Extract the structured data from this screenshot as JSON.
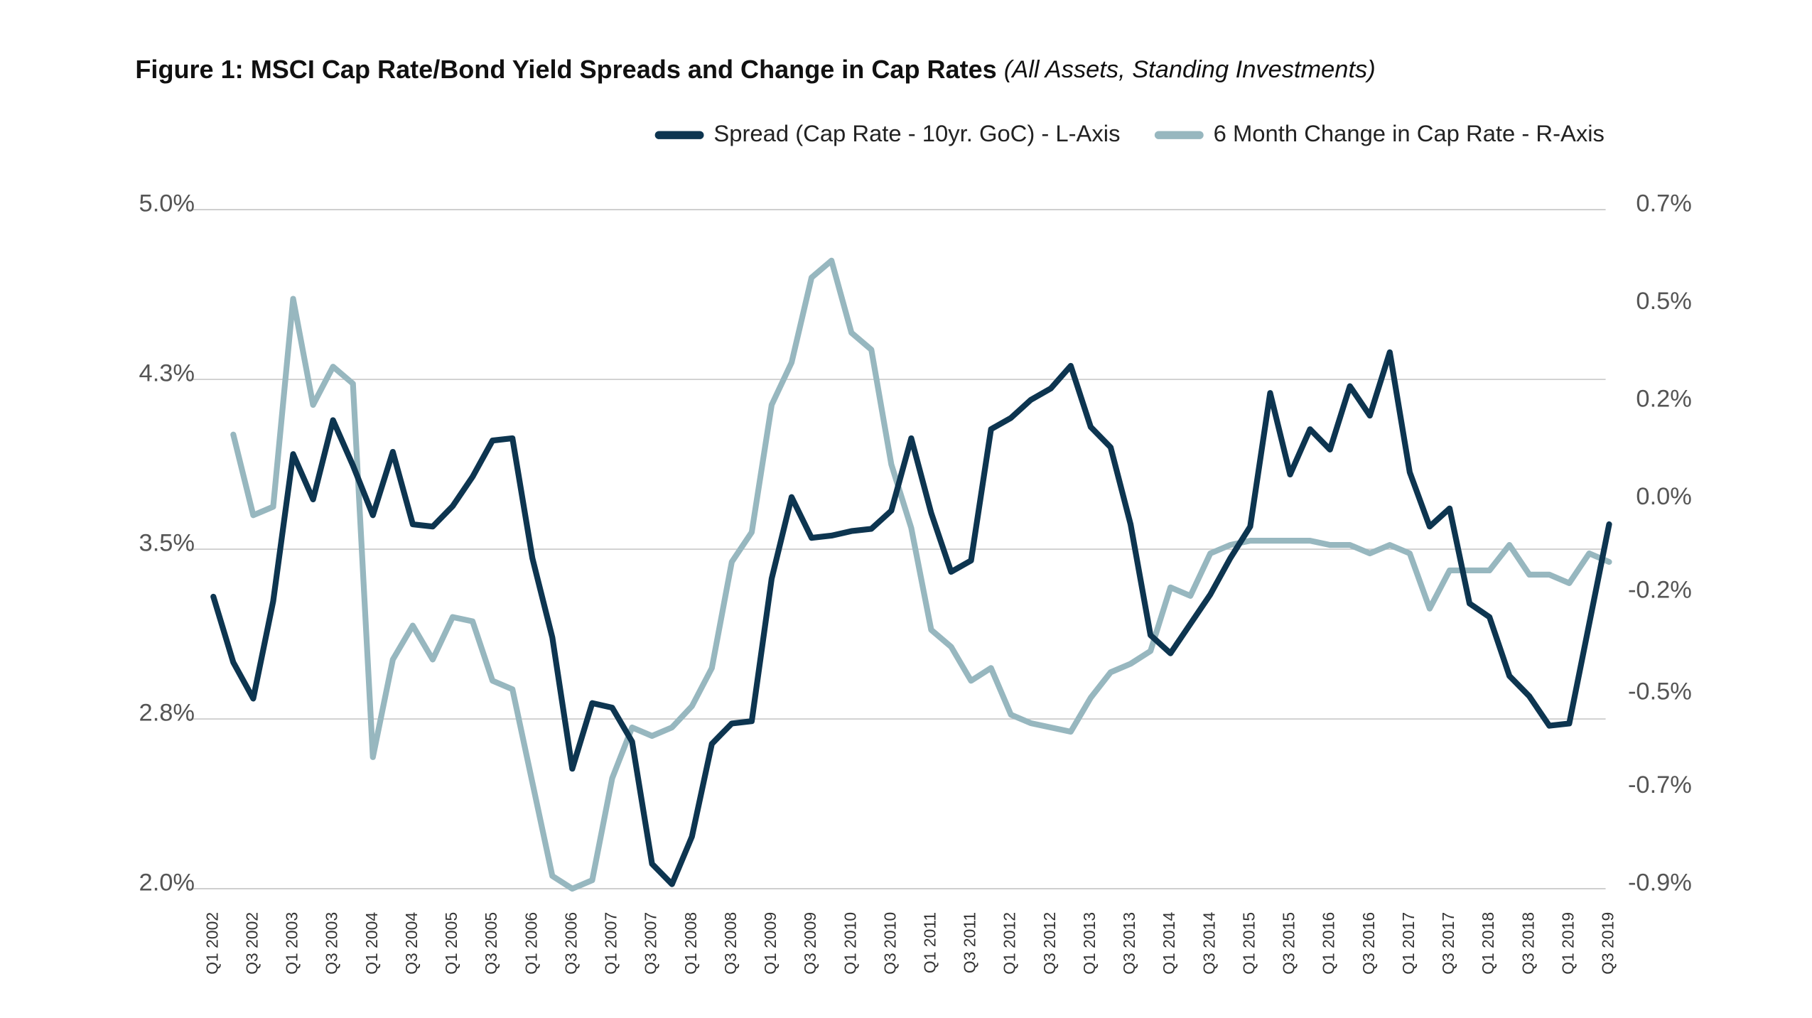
{
  "chart_data": {
    "type": "line",
    "title": "Figure 1: MSCI Cap Rate/Bond Yield Spreads and Change in Cap Rates",
    "subtitle": "(All Assets, Standing Investments)",
    "categories": [
      "Q1 2002",
      null,
      "Q3 2002",
      null,
      "Q1 2003",
      null,
      "Q3 2003",
      null,
      "Q1 2004",
      null,
      "Q3 2004",
      null,
      "Q1 2005",
      null,
      "Q3 2005",
      null,
      "Q1 2006",
      null,
      "Q3 2006",
      null,
      "Q1 2007",
      null,
      "Q3 2007",
      null,
      "Q1 2008",
      null,
      "Q3 2008",
      null,
      "Q1 2009",
      null,
      "Q3 2009",
      null,
      "Q1 2010",
      null,
      "Q3 2010",
      null,
      "Q1 2011",
      null,
      "Q3 2011",
      null,
      "Q1 2012",
      null,
      "Q3 2012",
      null,
      "Q1 2013",
      null,
      "Q3 2013",
      null,
      "Q1 2014",
      null,
      "Q3 2014",
      null,
      "Q1 2015",
      null,
      "Q3 2015",
      null,
      "Q1 2016",
      null,
      "Q3 2016",
      null,
      "Q1 2017",
      null,
      "Q3 2017",
      null,
      "Q1 2018",
      null,
      "Q3 2018",
      null,
      "Q1 2019",
      null,
      "Q3 2019"
    ],
    "series": [
      {
        "name": "Spread (Cap Rate - 10yr. GoC) - L-Axis",
        "color": "#0d3550",
        "axis": "y",
        "values": [
          3.29,
          3.0,
          2.84,
          3.27,
          3.92,
          3.72,
          4.07,
          3.87,
          3.65,
          3.93,
          3.61,
          3.6,
          3.69,
          3.82,
          3.98,
          3.99,
          3.46,
          3.11,
          2.53,
          2.82,
          2.8,
          2.65,
          2.11,
          2.02,
          2.23,
          2.64,
          2.73,
          2.74,
          3.37,
          3.73,
          3.55,
          3.56,
          3.58,
          3.59,
          3.67,
          3.99,
          3.66,
          3.4,
          3.45,
          4.03,
          4.08,
          4.16,
          4.21,
          4.31,
          4.04,
          3.95,
          3.61,
          3.12,
          3.04,
          3.17,
          3.3,
          3.46,
          3.6,
          4.19,
          3.83,
          4.03,
          3.94,
          4.22,
          4.09,
          4.37,
          3.84,
          3.6,
          3.68,
          3.26,
          3.2,
          2.94,
          2.85,
          2.72,
          2.73,
          3.17,
          3.61
        ]
      },
      {
        "name": "6 Month Change in Cap Rate - R-Axis",
        "color": "#97b7bf",
        "axis": "y2",
        "values": [
          null,
          0.17,
          -0.02,
          0.0,
          0.49,
          0.24,
          0.33,
          0.29,
          -0.59,
          -0.36,
          -0.28,
          -0.36,
          -0.26,
          -0.27,
          -0.41,
          -0.43,
          -0.65,
          -0.87,
          -0.9,
          -0.88,
          -0.64,
          -0.52,
          -0.54,
          -0.52,
          -0.47,
          -0.38,
          -0.13,
          -0.06,
          0.24,
          0.34,
          0.54,
          0.58,
          0.41,
          0.37,
          0.1,
          -0.05,
          -0.29,
          -0.33,
          -0.41,
          -0.38,
          -0.49,
          -0.51,
          -0.52,
          -0.53,
          -0.45,
          -0.39,
          -0.37,
          -0.34,
          -0.19,
          -0.21,
          -0.11,
          -0.09,
          -0.08,
          -0.08,
          -0.08,
          -0.08,
          -0.09,
          -0.09,
          -0.11,
          -0.09,
          -0.11,
          -0.24,
          -0.15,
          -0.15,
          -0.15,
          -0.09,
          -0.16,
          -0.16,
          -0.18,
          -0.11,
          -0.13
        ]
      }
    ],
    "ylim": [
      2.0,
      5.0
    ],
    "yticks": [
      {
        "value": 5.0,
        "label": "5.0%"
      },
      {
        "value": 4.25,
        "label": "4.3%"
      },
      {
        "value": 3.5,
        "label": "3.5%"
      },
      {
        "value": 2.75,
        "label": "2.8%"
      },
      {
        "value": 2.0,
        "label": "2.0%"
      }
    ],
    "y2lim": [
      -0.9,
      0.7
    ],
    "y2ticks": [
      {
        "value": 0.7,
        "label": "0.7%"
      },
      {
        "value": 0.47,
        "label": "0.5%"
      },
      {
        "value": 0.24,
        "label": "0.2%"
      },
      {
        "value": 0.01,
        "label": "0.0%"
      },
      {
        "value": -0.21,
        "label": "-0.2%"
      },
      {
        "value": -0.45,
        "label": "-0.5%"
      },
      {
        "value": -0.67,
        "label": "-0.7%"
      },
      {
        "value": -0.9,
        "label": "-0.9%"
      }
    ],
    "grid": true,
    "legend": "top-right"
  }
}
